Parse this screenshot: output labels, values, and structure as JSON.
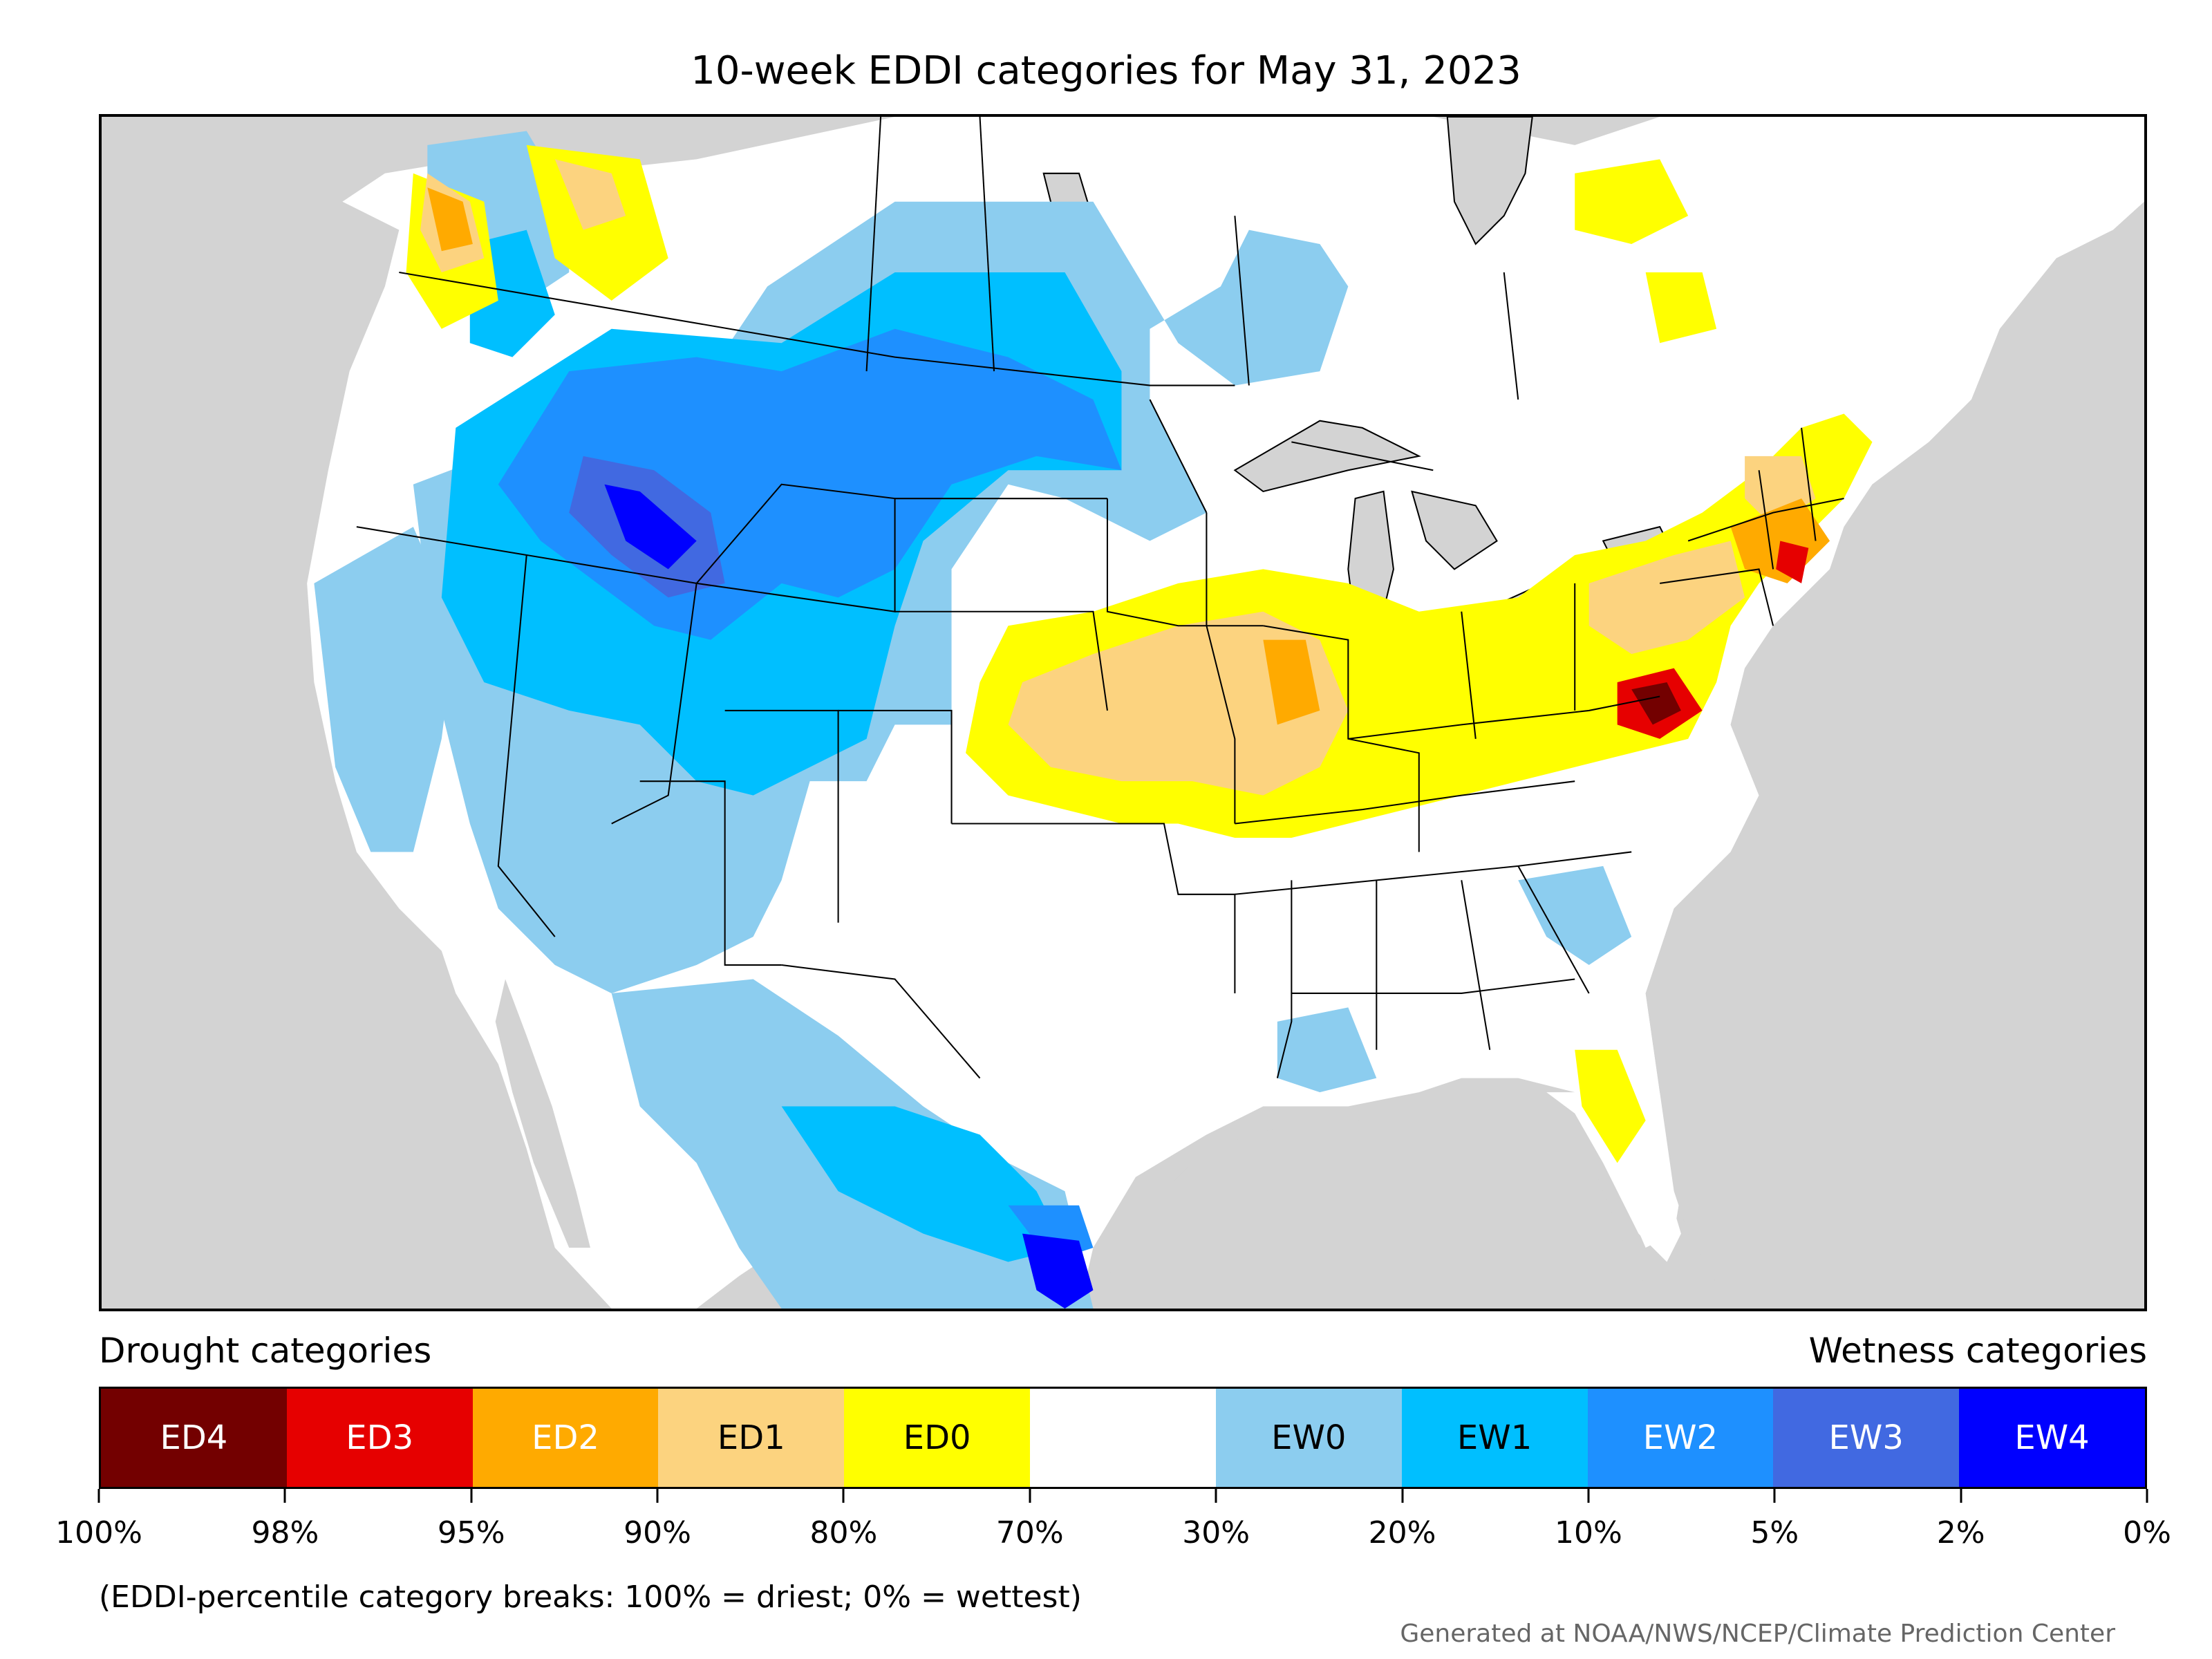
{
  "title": "10-week EDDI categories for May 31, 2023",
  "legend": {
    "drought_label": "Drought categories",
    "wetness_label": "Wetness categories",
    "categories": [
      {
        "label": "ED4",
        "color": "#730000",
        "text_color": "#ffffff"
      },
      {
        "label": "ED3",
        "color": "#e60000",
        "text_color": "#ffffff"
      },
      {
        "label": "ED2",
        "color": "#ffaa00",
        "text_color": "#ffffff"
      },
      {
        "label": "ED1",
        "color": "#fcd37f",
        "text_color": "#000000"
      },
      {
        "label": "ED0",
        "color": "#ffff00",
        "text_color": "#000000"
      },
      {
        "label": "",
        "color": "#ffffff",
        "text_color": "#000000"
      },
      {
        "label": "EW0",
        "color": "#8ccdef",
        "text_color": "#000000"
      },
      {
        "label": "EW1",
        "color": "#00bfff",
        "text_color": "#000000"
      },
      {
        "label": "EW2",
        "color": "#1e90ff",
        "text_color": "#ffffff"
      },
      {
        "label": "EW3",
        "color": "#4169e1",
        "text_color": "#ffffff"
      },
      {
        "label": "EW4",
        "color": "#0000ff",
        "text_color": "#ffffff"
      }
    ],
    "ticks": [
      "100%",
      "98%",
      "95%",
      "90%",
      "80%",
      "70%",
      "30%",
      "20%",
      "10%",
      "5%",
      "2%",
      "0%"
    ]
  },
  "note": "(EDDI-percentile category breaks: 100% = driest; 0% = wettest)",
  "credit": "Generated at NOAA/NWS/NCEP/Climate Prediction Center"
}
